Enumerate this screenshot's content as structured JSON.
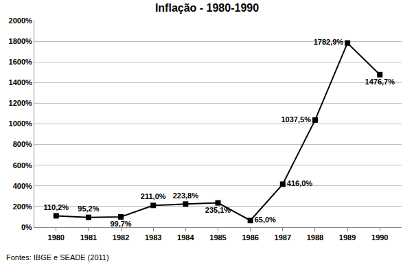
{
  "chart_data": {
    "type": "line",
    "title": "Inflação - 1980-1990",
    "categories": [
      "1980",
      "1981",
      "1982",
      "1983",
      "1984",
      "1985",
      "1986",
      "1987",
      "1988",
      "1989",
      "1990"
    ],
    "values": [
      110.2,
      95.2,
      99.7,
      211.0,
      223.8,
      235.1,
      65.0,
      416.0,
      1037.5,
      1782.9,
      1476.7
    ],
    "value_labels": [
      "110,2%",
      "95,2%",
      "99,7%",
      "211,0%",
      "223,8%",
      "235,1%",
      "65,0%",
      "416,0%",
      "1037,5%",
      "1782,9%",
      "1476,7%"
    ],
    "color": "#000000",
    "marker": "square",
    "ylim": [
      0,
      2000
    ],
    "yticks": [
      {
        "value": 0,
        "label": "0%"
      },
      {
        "value": 200,
        "label": "200%"
      },
      {
        "value": 400,
        "label": "400%"
      },
      {
        "value": 600,
        "label": "600%"
      },
      {
        "value": 800,
        "label": "800%"
      },
      {
        "value": 1000,
        "label": "1000%"
      },
      {
        "value": 1200,
        "label": "1200%"
      },
      {
        "value": 1400,
        "label": "1400%"
      },
      {
        "value": 1600,
        "label": "1600%"
      },
      {
        "value": 1800,
        "label": "1800%"
      },
      {
        "value": 2000,
        "label": "2000%"
      }
    ],
    "grid": true,
    "data_labels": true,
    "annotations": [
      "Fontes: IBGE e SEADE (2011)"
    ]
  }
}
